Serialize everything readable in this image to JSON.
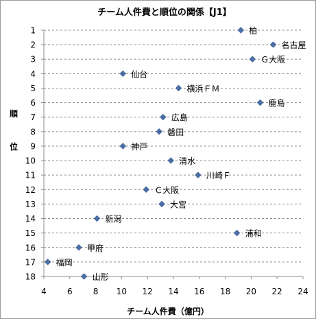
{
  "chart_data": {
    "type": "scatter",
    "title": "チーム人件費と順位の関係【J1】",
    "xlabel": "チーム人件費（億円）",
    "ylabel": "順位",
    "xlim": [
      4,
      24
    ],
    "ylim": [
      1,
      18
    ],
    "x_ticks": [
      "4",
      "6",
      "8",
      "10",
      "12",
      "14",
      "16",
      "18",
      "20",
      "22",
      "24"
    ],
    "y_ticks": [
      "1",
      "2",
      "3",
      "4",
      "5",
      "6",
      "7",
      "8",
      "9",
      "10",
      "11",
      "12",
      "13",
      "14",
      "15",
      "16",
      "17",
      "18"
    ],
    "y_inverted": true,
    "grid": "horizontal-dashed",
    "marker_color": "#4a6fa5",
    "points": [
      {
        "label": "柏",
        "x": 19.2,
        "y": 1
      },
      {
        "label": "名古屋",
        "x": 21.7,
        "y": 2
      },
      {
        "label": "Ｇ大阪",
        "x": 20.1,
        "y": 3
      },
      {
        "label": "仙台",
        "x": 10.1,
        "y": 4
      },
      {
        "label": "横浜ＦＭ",
        "x": 14.4,
        "y": 5
      },
      {
        "label": "鹿島",
        "x": 20.7,
        "y": 6
      },
      {
        "label": "広島",
        "x": 13.2,
        "y": 7
      },
      {
        "label": "磐田",
        "x": 12.9,
        "y": 8
      },
      {
        "label": "神戸",
        "x": 10.1,
        "y": 9
      },
      {
        "label": "清水",
        "x": 13.8,
        "y": 10
      },
      {
        "label": "川崎Ｆ",
        "x": 15.9,
        "y": 11
      },
      {
        "label": "Ｃ大阪",
        "x": 11.9,
        "y": 12
      },
      {
        "label": "大宮",
        "x": 13.1,
        "y": 13
      },
      {
        "label": "新潟",
        "x": 8.1,
        "y": 14
      },
      {
        "label": "浦和",
        "x": 18.9,
        "y": 15
      },
      {
        "label": "甲府",
        "x": 6.7,
        "y": 16
      },
      {
        "label": "福岡",
        "x": 4.3,
        "y": 17
      },
      {
        "label": "山形",
        "x": 7.1,
        "y": 18
      }
    ]
  }
}
